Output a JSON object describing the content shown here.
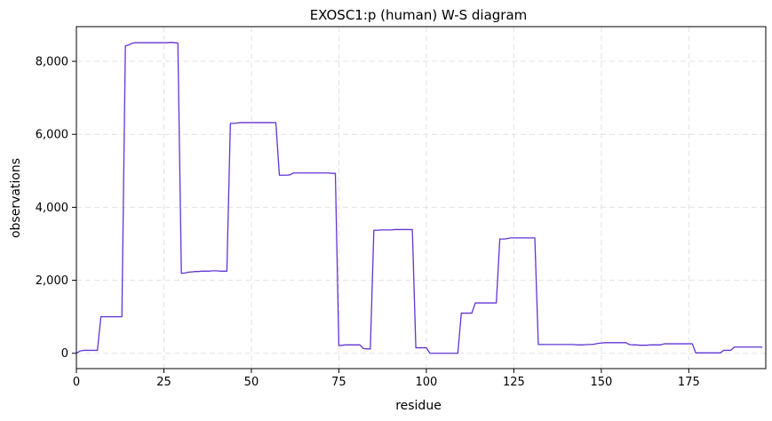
{
  "chart_data": {
    "type": "line",
    "title": "EXOSC1:p (human) W-S diagram",
    "xlabel": "residue",
    "ylabel": "observations",
    "xlim": [
      0,
      197
    ],
    "ylim": [
      -420,
      8950
    ],
    "x_ticks": [
      0,
      25,
      50,
      75,
      100,
      125,
      150,
      175
    ],
    "x_tick_labels": [
      "0",
      "25",
      "50",
      "75",
      "100",
      "125",
      "150",
      "175"
    ],
    "y_ticks": [
      0,
      2000,
      4000,
      6000,
      8000
    ],
    "y_tick_labels": [
      "0",
      "2,000",
      "4,000",
      "6,000",
      "8,000"
    ],
    "grid": true,
    "legend": "none",
    "line_color": "#6233d3",
    "series": [
      {
        "points": [
          [
            0,
            0
          ],
          [
            1,
            60
          ],
          [
            2,
            80
          ],
          [
            3,
            80
          ],
          [
            4,
            80
          ],
          [
            5,
            80
          ],
          [
            6,
            80
          ],
          [
            7,
            1000
          ],
          [
            8,
            1000
          ],
          [
            9,
            1000
          ],
          [
            10,
            1000
          ],
          [
            11,
            1000
          ],
          [
            12,
            1000
          ],
          [
            13,
            1000
          ],
          [
            14,
            8420
          ],
          [
            15,
            8450
          ],
          [
            16,
            8500
          ],
          [
            17,
            8510
          ],
          [
            18,
            8510
          ],
          [
            19,
            8510
          ],
          [
            20,
            8510
          ],
          [
            21,
            8510
          ],
          [
            22,
            8510
          ],
          [
            23,
            8510
          ],
          [
            24,
            8510
          ],
          [
            25,
            8510
          ],
          [
            26,
            8510
          ],
          [
            27,
            8520
          ],
          [
            28,
            8510
          ],
          [
            29,
            8500
          ],
          [
            30,
            2190
          ],
          [
            31,
            2200
          ],
          [
            32,
            2220
          ],
          [
            33,
            2230
          ],
          [
            34,
            2240
          ],
          [
            35,
            2240
          ],
          [
            36,
            2250
          ],
          [
            37,
            2250
          ],
          [
            38,
            2250
          ],
          [
            39,
            2260
          ],
          [
            40,
            2260
          ],
          [
            41,
            2250
          ],
          [
            42,
            2250
          ],
          [
            43,
            2250
          ],
          [
            44,
            6300
          ],
          [
            45,
            6300
          ],
          [
            46,
            6310
          ],
          [
            47,
            6320
          ],
          [
            48,
            6320
          ],
          [
            49,
            6320
          ],
          [
            50,
            6320
          ],
          [
            51,
            6320
          ],
          [
            52,
            6320
          ],
          [
            53,
            6320
          ],
          [
            54,
            6320
          ],
          [
            55,
            6320
          ],
          [
            56,
            6320
          ],
          [
            57,
            6320
          ],
          [
            58,
            4880
          ],
          [
            59,
            4880
          ],
          [
            60,
            4880
          ],
          [
            61,
            4890
          ],
          [
            62,
            4940
          ],
          [
            63,
            4940
          ],
          [
            64,
            4940
          ],
          [
            65,
            4940
          ],
          [
            66,
            4940
          ],
          [
            67,
            4940
          ],
          [
            68,
            4940
          ],
          [
            69,
            4940
          ],
          [
            70,
            4940
          ],
          [
            71,
            4940
          ],
          [
            72,
            4940
          ],
          [
            73,
            4930
          ],
          [
            74,
            4930
          ],
          [
            75,
            210
          ],
          [
            76,
            220
          ],
          [
            77,
            230
          ],
          [
            78,
            230
          ],
          [
            79,
            230
          ],
          [
            80,
            230
          ],
          [
            81,
            230
          ],
          [
            82,
            130
          ],
          [
            83,
            120
          ],
          [
            84,
            120
          ],
          [
            85,
            3370
          ],
          [
            86,
            3370
          ],
          [
            87,
            3380
          ],
          [
            88,
            3380
          ],
          [
            89,
            3380
          ],
          [
            90,
            3380
          ],
          [
            91,
            3390
          ],
          [
            92,
            3390
          ],
          [
            93,
            3390
          ],
          [
            94,
            3390
          ],
          [
            95,
            3390
          ],
          [
            96,
            3390
          ],
          [
            97,
            150
          ],
          [
            98,
            150
          ],
          [
            99,
            150
          ],
          [
            100,
            150
          ],
          [
            101,
            0
          ],
          [
            102,
            0
          ],
          [
            103,
            0
          ],
          [
            104,
            0
          ],
          [
            105,
            0
          ],
          [
            106,
            0
          ],
          [
            107,
            0
          ],
          [
            108,
            0
          ],
          [
            109,
            0
          ],
          [
            110,
            1100
          ],
          [
            111,
            1100
          ],
          [
            112,
            1100
          ],
          [
            113,
            1100
          ],
          [
            114,
            1380
          ],
          [
            115,
            1380
          ],
          [
            116,
            1380
          ],
          [
            117,
            1380
          ],
          [
            118,
            1380
          ],
          [
            119,
            1380
          ],
          [
            120,
            1380
          ],
          [
            121,
            3130
          ],
          [
            122,
            3130
          ],
          [
            123,
            3140
          ],
          [
            124,
            3160
          ],
          [
            125,
            3160
          ],
          [
            126,
            3160
          ],
          [
            127,
            3160
          ],
          [
            128,
            3160
          ],
          [
            129,
            3160
          ],
          [
            130,
            3160
          ],
          [
            131,
            3160
          ],
          [
            132,
            240
          ],
          [
            133,
            240
          ],
          [
            134,
            240
          ],
          [
            135,
            240
          ],
          [
            136,
            240
          ],
          [
            137,
            240
          ],
          [
            138,
            240
          ],
          [
            139,
            240
          ],
          [
            140,
            240
          ],
          [
            141,
            240
          ],
          [
            142,
            240
          ],
          [
            143,
            230
          ],
          [
            144,
            230
          ],
          [
            145,
            230
          ],
          [
            146,
            240
          ],
          [
            147,
            240
          ],
          [
            148,
            250
          ],
          [
            149,
            270
          ],
          [
            150,
            280
          ],
          [
            151,
            290
          ],
          [
            152,
            290
          ],
          [
            153,
            290
          ],
          [
            154,
            290
          ],
          [
            155,
            290
          ],
          [
            156,
            290
          ],
          [
            157,
            290
          ],
          [
            158,
            240
          ],
          [
            159,
            230
          ],
          [
            160,
            230
          ],
          [
            161,
            220
          ],
          [
            162,
            220
          ],
          [
            163,
            220
          ],
          [
            164,
            230
          ],
          [
            165,
            230
          ],
          [
            166,
            230
          ],
          [
            167,
            230
          ],
          [
            168,
            260
          ],
          [
            169,
            260
          ],
          [
            170,
            260
          ],
          [
            171,
            260
          ],
          [
            172,
            260
          ],
          [
            173,
            260
          ],
          [
            174,
            260
          ],
          [
            175,
            260
          ],
          [
            176,
            260
          ],
          [
            177,
            10
          ],
          [
            178,
            10
          ],
          [
            179,
            10
          ],
          [
            180,
            10
          ],
          [
            181,
            10
          ],
          [
            182,
            10
          ],
          [
            183,
            10
          ],
          [
            184,
            10
          ],
          [
            185,
            80
          ],
          [
            186,
            80
          ],
          [
            187,
            80
          ],
          [
            188,
            170
          ],
          [
            189,
            170
          ],
          [
            190,
            170
          ],
          [
            191,
            170
          ],
          [
            192,
            170
          ],
          [
            193,
            170
          ],
          [
            194,
            170
          ],
          [
            195,
            170
          ],
          [
            196,
            165
          ]
        ]
      }
    ]
  }
}
